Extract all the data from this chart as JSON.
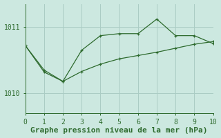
{
  "line1_x": [
    0,
    1,
    2,
    3,
    4,
    5,
    6,
    7,
    8,
    9,
    10
  ],
  "line1_y": [
    1010.72,
    1010.32,
    1010.18,
    1010.65,
    1010.87,
    1010.9,
    1010.9,
    1011.12,
    1010.87,
    1010.87,
    1010.75
  ],
  "line2_x": [
    0,
    1,
    2,
    3,
    4,
    5,
    6,
    7,
    8,
    9,
    10
  ],
  "line2_y": [
    1010.72,
    1010.35,
    1010.18,
    1010.33,
    1010.44,
    1010.52,
    1010.57,
    1010.62,
    1010.68,
    1010.74,
    1010.78
  ],
  "line_color": "#2d6a2d",
  "bg_color": "#cce8e0",
  "grid_color": "#aaccc4",
  "xlabel": "Graphe pression niveau de la mer (hPa)",
  "xlim": [
    0,
    10
  ],
  "ylim": [
    1009.7,
    1011.35
  ],
  "yticks": [
    1010,
    1011
  ],
  "xticks": [
    0,
    1,
    2,
    3,
    4,
    5,
    6,
    7,
    8,
    9,
    10
  ],
  "xlabel_fontsize": 8,
  "tick_fontsize": 7
}
